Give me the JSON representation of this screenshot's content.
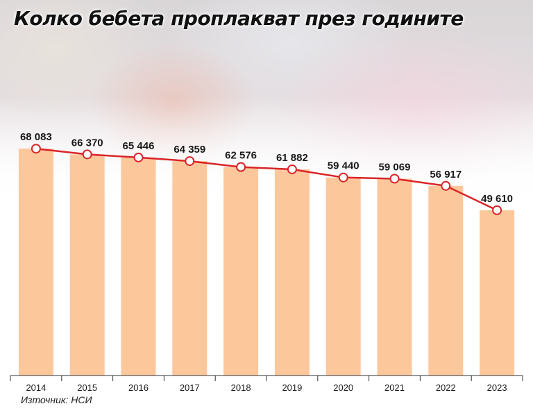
{
  "title": "Колко бебета проплакват през годините",
  "source": "Източник: НСИ",
  "colors": {
    "bar": "#fdc79c",
    "line": "#d92527",
    "marker_fill": "#ffffff",
    "text": "#1a1a1a"
  },
  "chart_data": {
    "type": "bar",
    "categories": [
      "2014",
      "2015",
      "2016",
      "2017",
      "2018",
      "2019",
      "2020",
      "2021",
      "2022",
      "2023"
    ],
    "values": [
      68083,
      66370,
      65446,
      64359,
      62576,
      61882,
      59440,
      59069,
      56917,
      49610
    ],
    "labels": [
      "68 083",
      "66 370",
      "65 446",
      "64 359",
      "62 576",
      "61 882",
      "59 440",
      "59 069",
      "56 917",
      "49 610"
    ],
    "overlay": "line",
    "ylim": [
      0,
      70000
    ],
    "grid": false,
    "legend": "none"
  }
}
